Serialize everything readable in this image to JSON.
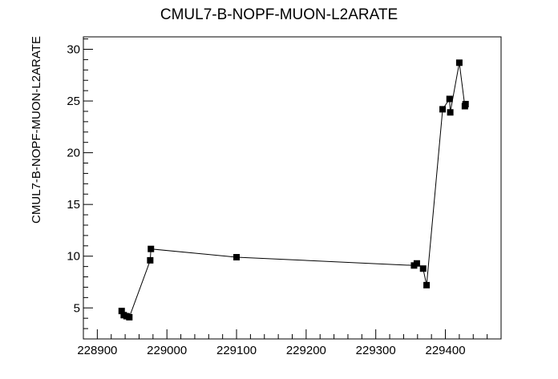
{
  "chart_data": {
    "type": "line",
    "title": "CMUL7-B-NOPF-MUON-L2ARATE",
    "xlabel": "",
    "ylabel": "CMUL7-B-NOPF-MUON-L2ARATE",
    "xlim": [
      228880,
      229480
    ],
    "ylim": [
      2,
      31.2
    ],
    "xticks": [
      "228900",
      "229000",
      "229100",
      "229200",
      "229300",
      "229400"
    ],
    "yticks": [
      "5",
      "10",
      "15",
      "20",
      "25",
      "30"
    ],
    "grid": false,
    "legend": "none",
    "marker": "square",
    "line_color": "#000000",
    "series": [
      {
        "x": [
          228935,
          228938,
          228942,
          228946,
          228976,
          228977,
          229100,
          229355,
          229359,
          229368,
          229373,
          229396,
          229406,
          229407,
          229420,
          229428,
          229429
        ],
        "y": [
          4.7,
          4.3,
          4.2,
          4.1,
          9.6,
          10.7,
          9.9,
          9.1,
          9.3,
          8.8,
          7.2,
          24.2,
          25.2,
          23.9,
          28.7,
          24.5,
          24.7
        ]
      }
    ]
  }
}
